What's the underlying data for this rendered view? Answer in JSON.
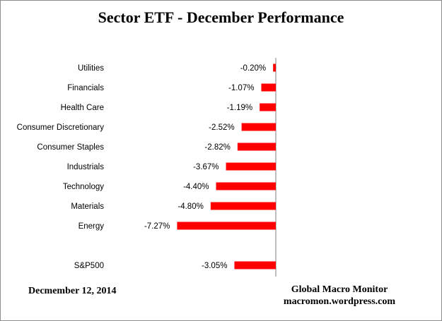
{
  "chart_data": {
    "type": "bar",
    "orientation": "horizontal",
    "title": "Sector ETF - December Performance",
    "categories": [
      "Utilities",
      "Financials",
      "Health Care",
      "Consumer Discretionary",
      "Consumer Staples",
      "Industrials",
      "Technology",
      "Materials",
      "Energy",
      "",
      "S&P500"
    ],
    "values": [
      -0.2,
      -1.07,
      -1.19,
      -2.52,
      -2.82,
      -3.67,
      -4.4,
      -4.8,
      -7.27,
      null,
      -3.05
    ],
    "value_labels": [
      "-0.20%",
      "-1.07%",
      "-1.19%",
      "-2.52%",
      "-2.82%",
      "-3.67%",
      "-4.40%",
      "-4.80%",
      "-7.27%",
      "",
      "-3.05%"
    ],
    "bar_color": "#ff0000",
    "axis_color": "#808080",
    "grid": false,
    "legend": "none"
  },
  "footer": {
    "date": "Decmember 12, 2014",
    "source_line1": "Global Macro Monitor",
    "source_line2": "macromon.wordpress.com"
  }
}
